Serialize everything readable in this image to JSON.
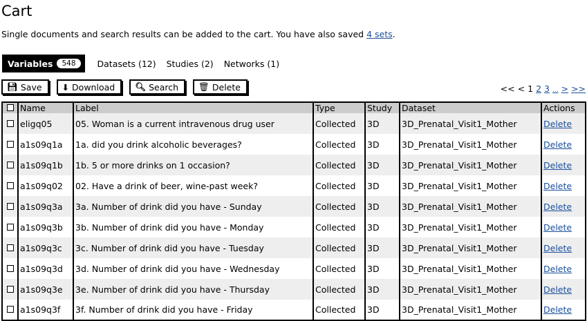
{
  "title": "Cart",
  "description": {
    "text": "Single documents and search results can be added to the cart. You have also saved ",
    "link": "4 sets",
    "end": "."
  },
  "tabs": [
    {
      "label": "Variables",
      "count": "548",
      "active": true
    },
    {
      "label": "Datasets (12)"
    },
    {
      "label": "Studies (2)"
    },
    {
      "label": "Networks (1)"
    }
  ],
  "toolbar": {
    "save": "Save",
    "download": "Download",
    "search": "Search",
    "delete": "Delete"
  },
  "pager": {
    "first": "<<",
    "prev": "<",
    "current": "1",
    "pages": [
      "2",
      "3"
    ],
    "ellipsis": "...",
    "next": ">",
    "last": ">>"
  },
  "table": {
    "headers": [
      "Name",
      "Label",
      "Type",
      "Study",
      "Dataset",
      "Actions"
    ],
    "rows": [
      [
        "eligq05",
        "05. Woman is a current intravenous drug user",
        "Collected",
        "3D",
        "3D_Prenatal_Visit1_Mother",
        "Delete"
      ],
      [
        "a1s09q1a",
        "1a. did you drink alcoholic beverages?",
        "Collected",
        "3D",
        "3D_Prenatal_Visit1_Mother",
        "Delete"
      ],
      [
        "a1s09q1b",
        "1b. 5 or more drinks on 1 occasion?",
        "Collected",
        "3D",
        "3D_Prenatal_Visit1_Mother",
        "Delete"
      ],
      [
        "a1s09q02",
        "02. Have a drink of beer, wine-past week?",
        "Collected",
        "3D",
        "3D_Prenatal_Visit1_Mother",
        "Delete"
      ],
      [
        "a1s09q3a",
        "3a. Number of drink did you have - Sunday",
        "Collected",
        "3D",
        "3D_Prenatal_Visit1_Mother",
        "Delete"
      ],
      [
        "a1s09q3b",
        "3b. Number of drink did you have - Monday",
        "Collected",
        "3D",
        "3D_Prenatal_Visit1_Mother",
        "Delete"
      ],
      [
        "a1s09q3c",
        "3c. Number of drink did you have - Tuesday",
        "Collected",
        "3D",
        "3D_Prenatal_Visit1_Mother",
        "Delete"
      ],
      [
        "a1s09q3d",
        "3d. Number of drink did you have - Wednesday",
        "Collected",
        "3D",
        "3D_Prenatal_Visit1_Mother",
        "Delete"
      ],
      [
        "a1s09q3e",
        "3e. Number of drink did you have - Thursday",
        "Collected",
        "3D",
        "3D_Prenatal_Visit1_Mother",
        "Delete"
      ],
      [
        "a1s09q3f",
        "3f. Number of drink did you have - Friday",
        "Collected",
        "3D",
        "3D_Prenatal_Visit1_Mother",
        "Delete"
      ]
    ]
  }
}
